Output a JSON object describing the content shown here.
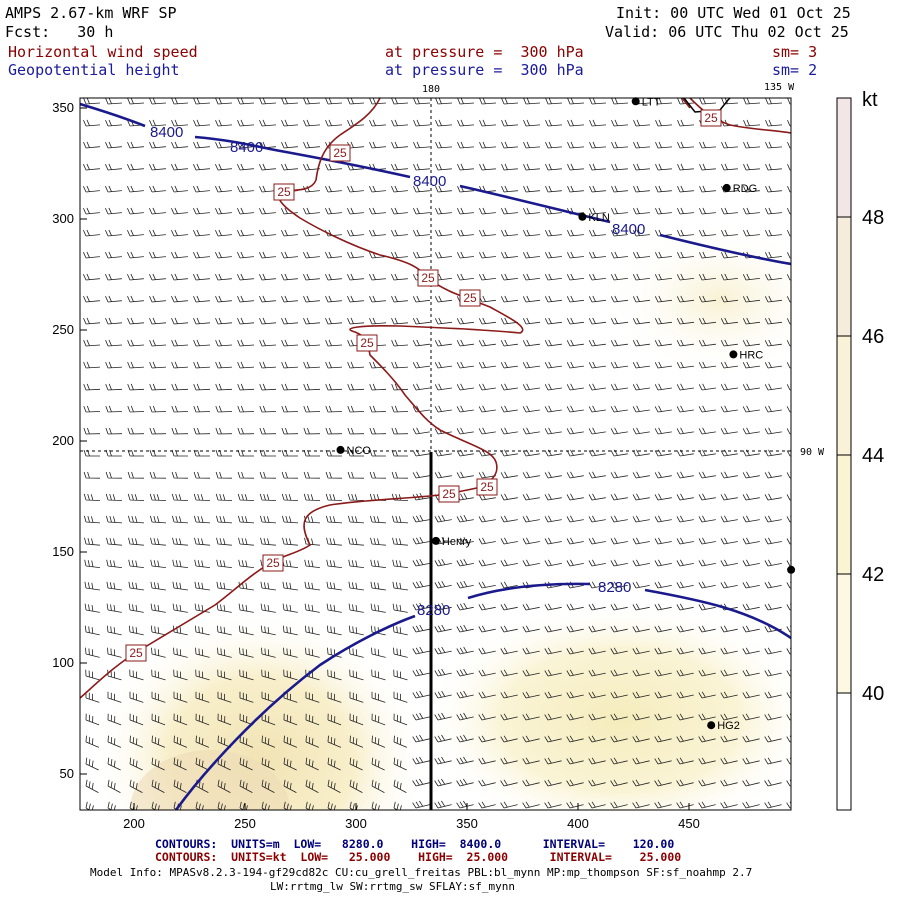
{
  "header": {
    "model": "AMPS 2.67-km WRF SP",
    "forecast": "Fcst:   30 h",
    "init": "Init: 00 UTC Wed 01 Oct 25",
    "valid": "Valid: 06 UTC Thu 02 Oct 25",
    "field1_name": "Horizontal wind speed",
    "field1_level": "at pressure =  300 hPa",
    "field1_sm": "sm= 3",
    "field2_name": "Geopotential height",
    "field2_level": "at pressure =  300 hPa",
    "field2_sm": "sm= 2"
  },
  "map": {
    "x_ticks": [
      "200",
      "250",
      "300",
      "350",
      "400",
      "450"
    ],
    "y_ticks": [
      "350",
      "300",
      "250",
      "200",
      "150",
      "100",
      "50"
    ],
    "meridian_label_top": "180",
    "meridian_label_right_top": "135 W",
    "meridian_label_right": "90 W",
    "stations": [
      {
        "name": "LTT",
        "x": 426,
        "y": 353
      },
      {
        "name": "RDG",
        "x": 467,
        "y": 314
      },
      {
        "name": "KLN",
        "x": 402,
        "y": 301
      },
      {
        "name": "HRC",
        "x": 470,
        "y": 239
      },
      {
        "name": "NCO",
        "x": 293,
        "y": 196
      },
      {
        "name": "Henry",
        "x": 336,
        "y": 155
      },
      {
        "name": "HG2",
        "x": 460,
        "y": 72
      },
      {
        "name": "",
        "x": 496,
        "y": 142
      }
    ],
    "height_contour_labels": [
      "8400",
      "8400",
      "8400",
      "8400",
      "8280",
      "8280"
    ],
    "speed_contour_labels": [
      "25",
      "25",
      "25",
      "25",
      "25",
      "25",
      "25",
      "25",
      "25",
      "25"
    ]
  },
  "colorbar": {
    "unit": "kt",
    "labels": [
      "48",
      "46",
      "44",
      "42",
      "40"
    ]
  },
  "footer": {
    "contours_blue": "CONTOURS:  UNITS=m  LOW=   8280.0    HIGH=  8400.0      INTERVAL=    120.00",
    "contours_red": "CONTOURS:  UNITS=kt  LOW=   25.000    HIGH=  25.000      INTERVAL=    25.000",
    "model_info": "Model Info: MPASv8.2.3-194-gf29cd82c CU:cu_grell_freitas PBL:bl_mynn MP:mp_thompson SF:sf_noahmp 2.7",
    "model_info2": "LW:rrtmg_lw SW:rrtmg_sw SFLAY:sf_mynn"
  },
  "colors": {
    "height_contour": "#1a1a8c",
    "speed_contour": "#8b1a1a",
    "shade_light": "#fdf9dc",
    "shade_med": "#f7efc2"
  }
}
